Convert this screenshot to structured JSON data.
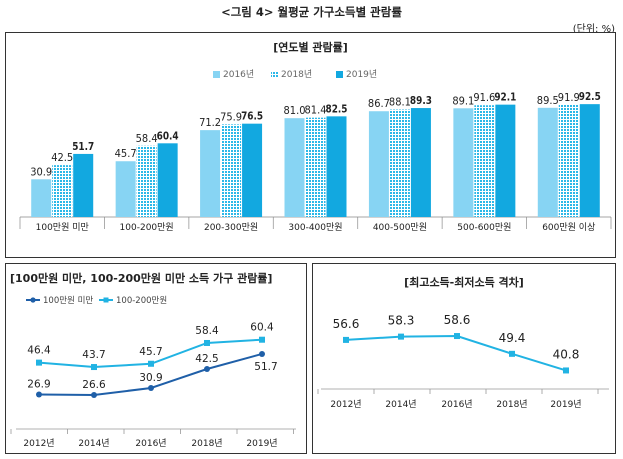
{
  "figure": {
    "title": "<그림 4> 월평균 가구소득별 관람률",
    "unit": "(단위: %)"
  },
  "chart_data": [
    {
      "type": "bar",
      "title": "[연도별 관람률]",
      "categories": [
        "100만원 미만",
        "100-200만원",
        "200-300만원",
        "300-400만원",
        "400-500만원",
        "500-600만원",
        "600만원 이상"
      ],
      "series": [
        {
          "name": "2016년",
          "values": [
            30.9,
            45.7,
            71.2,
            81.0,
            86.7,
            89.1,
            89.5
          ],
          "color": "#87d4f3",
          "pattern": "solid"
        },
        {
          "name": "2018년",
          "values": [
            42.5,
            58.4,
            75.9,
            81.4,
            88.1,
            91.6,
            91.9
          ],
          "color": "#2cb8e8",
          "pattern": "dotted"
        },
        {
          "name": "2019년",
          "values": [
            51.7,
            60.4,
            76.5,
            82.5,
            89.3,
            92.1,
            92.5
          ],
          "color": "#12a8e0",
          "pattern": "solid"
        }
      ],
      "value_labels": [
        [
          "30.9",
          "45.7",
          "71.2",
          "81.0",
          "86.7",
          "89.1",
          "89.5"
        ],
        [
          "42.5",
          "58.4",
          "75.9",
          "81.4",
          "88.1",
          "91.6",
          "91.9"
        ],
        [
          "51.7",
          "60.4",
          "76.5",
          "82.5",
          "89.3",
          "92.1",
          "92.5"
        ]
      ],
      "ylim": [
        0,
        100
      ],
      "legend": "top-center",
      "grid": false
    },
    {
      "type": "line",
      "title": "[100만원 미만, 100-200만원 미만 소득 가구 관람률]",
      "x": [
        "2012년",
        "2014년",
        "2016년",
        "2018년",
        "2019년"
      ],
      "series": [
        {
          "name": "100만원 미만",
          "values": [
            26.9,
            26.6,
            30.9,
            42.5,
            51.7
          ],
          "labels": [
            "26.9",
            "26.6",
            "30.9",
            "42.5",
            "51.7"
          ],
          "color": "#1f5fa8",
          "marker": "circle"
        },
        {
          "name": "100-200만원",
          "values": [
            46.4,
            43.7,
            45.7,
            58.4,
            60.4
          ],
          "labels": [
            "46.4",
            "43.7",
            "45.7",
            "58.4",
            "60.4"
          ],
          "color": "#21b3e3",
          "marker": "square"
        }
      ],
      "ylim": [
        15,
        70
      ],
      "legend": "top-left",
      "grid": false
    },
    {
      "type": "line",
      "title": "[최고소득-최저소득 격차]",
      "x": [
        "2012년",
        "2014년",
        "2016년",
        "2018년",
        "2019년"
      ],
      "series": [
        {
          "values": [
            56.6,
            58.3,
            58.6,
            49.4,
            40.8
          ],
          "labels": [
            "56.6",
            "58.3",
            "58.6",
            "49.4",
            "40.8"
          ],
          "color": "#21b3e3",
          "marker": "square"
        }
      ],
      "ylim": [
        25,
        70
      ],
      "grid": false
    }
  ]
}
